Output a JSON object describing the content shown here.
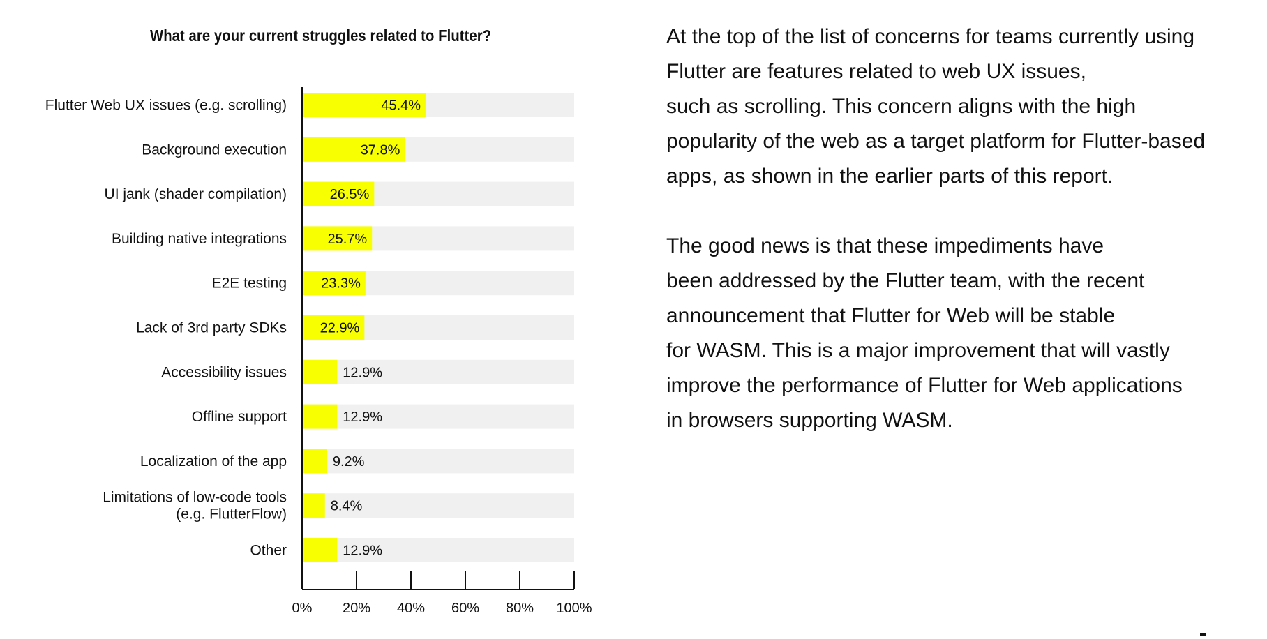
{
  "chart_data": {
    "type": "bar",
    "orientation": "horizontal",
    "title": "What are your current struggles related to Flutter?",
    "categories": [
      [
        "Flutter Web UX issues (e.g. scrolling)"
      ],
      [
        "Background execution"
      ],
      [
        "UI jank (shader compilation)"
      ],
      [
        "Building native integrations"
      ],
      [
        "E2E testing"
      ],
      [
        "Lack of 3rd party SDKs"
      ],
      [
        "Accessibility issues"
      ],
      [
        "Offline support"
      ],
      [
        "Localization of the app"
      ],
      [
        "Limitations of low-code tools",
        "(e.g. FlutterFlow)"
      ],
      [
        "Other"
      ]
    ],
    "values": [
      45.4,
      37.8,
      26.5,
      25.7,
      23.3,
      22.9,
      12.9,
      12.9,
      9.2,
      8.4,
      12.9
    ],
    "value_labels": [
      "45.4%",
      "37.8%",
      "26.5%",
      "25.7%",
      "23.3%",
      "22.9%",
      "12.9%",
      "12.9%",
      "9.2%",
      "8.4%",
      "12.9%"
    ],
    "xlim": [
      0,
      100
    ],
    "xticks": [
      "0%",
      "20%",
      "40%",
      "60%",
      "80%",
      "100%"
    ],
    "bar_color": "#f7ff00",
    "track_color": "#f0f0f0",
    "grid": false,
    "legend": "none"
  },
  "commentary": {
    "paragraphs": [
      [
        "At the top of the list of concerns for teams currently using",
        "Flutter are features related to web UX issues,",
        "such as scrolling. This concern aligns with the high",
        "popularity of the web as a target platform for Flutter-based",
        "apps, as shown in the earlier parts of this report."
      ],
      [
        "The good news is that these impediments have",
        "been addressed by the Flutter team, with the recent",
        "announcement that Flutter for Web will be stable",
        "for WASM. This is a major improvement that will vastly",
        "improve the performance of Flutter for Web applications",
        "in browsers supporting WASM."
      ]
    ]
  }
}
